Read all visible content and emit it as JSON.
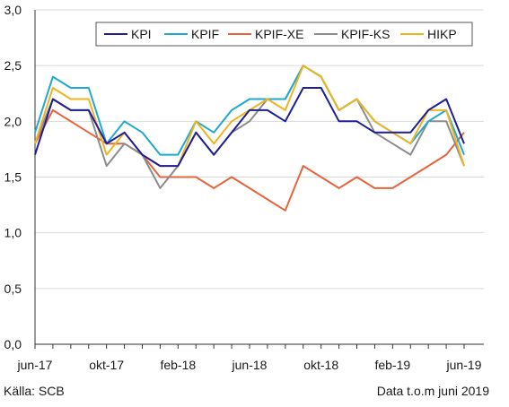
{
  "source_label": "Källa: SCB",
  "note_label": "Data t.o.m juni 2019",
  "chart_data": {
    "type": "line",
    "title": "",
    "xlabel": "",
    "ylabel": "",
    "ylim": [
      0,
      3
    ],
    "y_ticks": [
      "0,0",
      "0,5",
      "1,0",
      "1,5",
      "2,0",
      "2,5",
      "3,0"
    ],
    "y_tick_values": [
      0,
      0.5,
      1.0,
      1.5,
      2.0,
      2.5,
      3.0
    ],
    "x": [
      "2017-06",
      "2017-07",
      "2017-08",
      "2017-09",
      "2017-10",
      "2017-11",
      "2017-12",
      "2018-01",
      "2018-02",
      "2018-03",
      "2018-04",
      "2018-05",
      "2018-06",
      "2018-07",
      "2018-08",
      "2018-09",
      "2018-10",
      "2018-11",
      "2018-12",
      "2019-01",
      "2019-02",
      "2019-03",
      "2019-04",
      "2019-05",
      "2019-06"
    ],
    "x_tick_labels": [
      {
        "label": "jun-17",
        "x": "2017-06"
      },
      {
        "label": "okt-17",
        "x": "2017-10"
      },
      {
        "label": "feb-18",
        "x": "2018-02"
      },
      {
        "label": "jun-18",
        "x": "2018-06"
      },
      {
        "label": "okt-18",
        "x": "2018-10"
      },
      {
        "label": "feb-19",
        "x": "2019-02"
      },
      {
        "label": "jun-19",
        "x": "2019-06"
      }
    ],
    "grid": "horizontal",
    "legend_position": "top-right",
    "series": [
      {
        "name": "KPI",
        "color": "#1e1e96",
        "values": [
          1.7,
          2.2,
          2.1,
          2.1,
          1.8,
          1.9,
          1.7,
          1.6,
          1.6,
          1.9,
          1.7,
          1.9,
          2.1,
          2.1,
          2.0,
          2.3,
          2.3,
          2.0,
          2.0,
          1.9,
          1.9,
          1.9,
          2.1,
          2.2,
          1.8
        ]
      },
      {
        "name": "KPIF",
        "color": "#1ea8d2",
        "values": [
          1.9,
          2.4,
          2.3,
          2.3,
          1.8,
          2.0,
          1.9,
          1.7,
          1.7,
          2.0,
          1.9,
          2.1,
          2.2,
          2.2,
          2.2,
          2.5,
          2.4,
          2.1,
          2.2,
          2.0,
          1.9,
          1.8,
          2.0,
          2.1,
          1.7
        ]
      },
      {
        "name": "KPIF-XE",
        "color": "#e6643c",
        "values": [
          1.8,
          2.1,
          2.0,
          1.9,
          1.8,
          1.8,
          1.7,
          1.5,
          1.5,
          1.5,
          1.4,
          1.5,
          1.4,
          1.3,
          1.2,
          1.6,
          1.5,
          1.4,
          1.5,
          1.4,
          1.4,
          1.5,
          1.6,
          1.7,
          1.9
        ]
      },
      {
        "name": "KPIF-KS",
        "color": "#8c8c8c",
        "values": [
          1.8,
          2.2,
          2.1,
          2.1,
          1.6,
          1.8,
          1.7,
          1.4,
          1.6,
          1.9,
          1.7,
          1.9,
          2.0,
          2.2,
          2.2,
          2.5,
          2.4,
          2.1,
          2.2,
          1.9,
          1.8,
          1.7,
          2.0,
          2.0,
          1.6
        ]
      },
      {
        "name": "HIKP",
        "color": "#f0b41e",
        "values": [
          1.8,
          2.3,
          2.2,
          2.2,
          1.7,
          1.9,
          1.7,
          1.6,
          1.6,
          2.0,
          1.8,
          2.0,
          2.1,
          2.2,
          2.1,
          2.5,
          2.4,
          2.1,
          2.2,
          2.0,
          1.9,
          1.8,
          2.1,
          2.1,
          1.6
        ]
      }
    ]
  }
}
